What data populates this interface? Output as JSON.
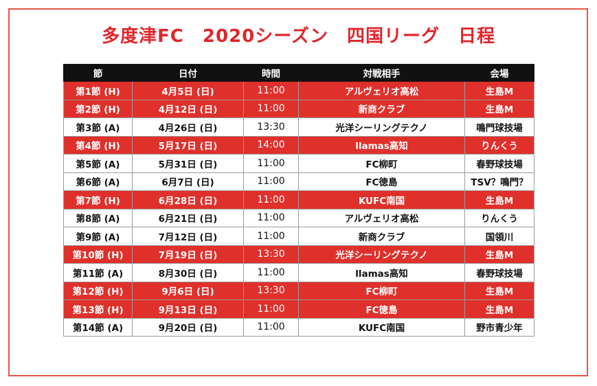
{
  "title": "多度津FC　2020シーズン　四国リーグ　日程",
  "colors": {
    "title": "#e0262b",
    "home_row": "#e0302b",
    "header": "#111111",
    "frame": "#e8524a"
  },
  "table": {
    "headers": [
      "節",
      "日付",
      "時間",
      "対戦相手",
      "会場"
    ],
    "rows": [
      {
        "home": true,
        "round": "第1節 (H)",
        "date": "4月5日 (日)",
        "time": "11:00",
        "opponent": "アルヴェリオ高松",
        "venue": "生島M"
      },
      {
        "home": true,
        "round": "第2節 (H)",
        "date": "4月12日 (日)",
        "time": "11:00",
        "opponent": "新商クラブ",
        "venue": "生島M"
      },
      {
        "home": false,
        "round": "第3節 (A)",
        "date": "4月26日 (日)",
        "time": "13:30",
        "opponent": "光洋シーリングテクノ",
        "venue": "鳴門球技場"
      },
      {
        "home": true,
        "round": "第4節 (H)",
        "date": "5月17日 (日)",
        "time": "14:00",
        "opponent": "llamas高知",
        "venue": "りんくう"
      },
      {
        "home": false,
        "round": "第5節 (A)",
        "date": "5月31日 (日)",
        "time": "11:00",
        "opponent": "FC柳町",
        "venue": "春野球技場"
      },
      {
        "home": false,
        "round": "第6節 (A)",
        "date": "6月7日 (日)",
        "time": "11:00",
        "opponent": "FC徳島",
        "venue": "TSV？鳴門？"
      },
      {
        "home": true,
        "round": "第7節 (H)",
        "date": "6月28日 (日)",
        "time": "11:00",
        "opponent": "KUFC南国",
        "venue": "生島M"
      },
      {
        "home": false,
        "round": "第8節 (A)",
        "date": "6月21日 (日)",
        "time": "11:00",
        "opponent": "アルヴェリオ高松",
        "venue": "りんくう"
      },
      {
        "home": false,
        "round": "第9節 (A)",
        "date": "7月12日 (日)",
        "time": "11:00",
        "opponent": "新商クラブ",
        "venue": "国領川"
      },
      {
        "home": true,
        "round": "第10節 (H)",
        "date": "7月19日 (日)",
        "time": "13:30",
        "opponent": "光洋シーリングテクノ",
        "venue": "生島M"
      },
      {
        "home": false,
        "round": "第11節 (A)",
        "date": "8月30日 (日)",
        "time": "11:00",
        "opponent": "llamas高知",
        "venue": "春野球技場"
      },
      {
        "home": true,
        "round": "第12節 (H)",
        "date": "9月6日 (日)",
        "time": "13:30",
        "opponent": "FC柳町",
        "venue": "生島M"
      },
      {
        "home": true,
        "round": "第13節 (H)",
        "date": "9月13日 (日)",
        "time": "11:00",
        "opponent": "FC徳島",
        "venue": "生島M"
      },
      {
        "home": false,
        "round": "第14節 (A)",
        "date": "9月20日 (日)",
        "time": "11:00",
        "opponent": "KUFC南国",
        "venue": "野市青少年"
      }
    ]
  }
}
